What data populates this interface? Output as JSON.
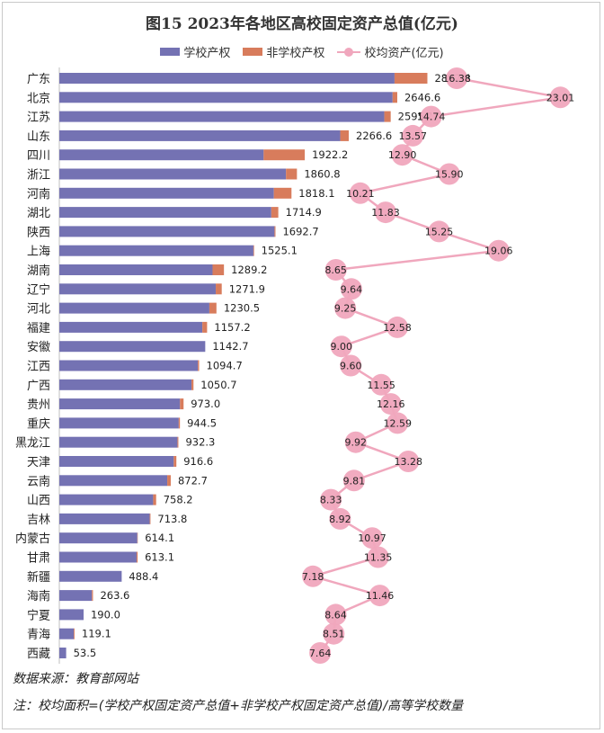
{
  "chart_data": {
    "type": "bar",
    "title": "图15  2023年各地区高校固定资产总值(亿元)",
    "legend": [
      "学校产权",
      "非学校产权",
      "校均资产(亿元)"
    ],
    "colors": {
      "school": "#7472b3",
      "nonschool": "#d87c5c",
      "avg": "#f0a7bd"
    },
    "xlim": [
      0,
      2900
    ],
    "categories": [
      "广东",
      "北京",
      "江苏",
      "山东",
      "四川",
      "浙江",
      "河南",
      "湖北",
      "陕西",
      "上海",
      "湖南",
      "辽宁",
      "河北",
      "福建",
      "安徽",
      "江西",
      "广西",
      "贵州",
      "重庆",
      "黑龙江",
      "天津",
      "云南",
      "山西",
      "吉林",
      "内蒙古",
      "甘肃",
      "新疆",
      "海南",
      "宁夏",
      "青海",
      "西藏"
    ],
    "series": [
      {
        "name": "学校产权",
        "values": [
          2625,
          2610,
          2545,
          2200,
          1600,
          1775,
          1680,
          1660,
          1685,
          1520,
          1200,
          1225,
          1175,
          1120,
          1142.7,
          1085,
          1035,
          945,
          935,
          925,
          896,
          845,
          735,
          708,
          611,
          605,
          488.4,
          255,
          190,
          113,
          53.5
        ]
      },
      {
        "name": "非学校产权",
        "values": [
          257.4,
          36.6,
          50.1,
          66.6,
          322.2,
          85.8,
          138.1,
          54.9,
          7.7,
          5.1,
          89.2,
          46.9,
          55.5,
          37.2,
          0,
          9.7,
          15.7,
          28,
          9.5,
          7.3,
          20.6,
          27.7,
          23.2,
          5.8,
          3.1,
          8.1,
          0,
          8.6,
          0,
          6.1,
          0
        ]
      },
      {
        "name": "校均资产(亿元)",
        "values": [
          16.38,
          23.01,
          14.74,
          13.57,
          12.9,
          15.9,
          10.21,
          11.83,
          15.25,
          19.06,
          8.65,
          9.64,
          9.25,
          12.58,
          9.0,
          9.6,
          11.55,
          12.16,
          12.59,
          9.92,
          13.28,
          9.81,
          8.33,
          8.92,
          10.97,
          11.35,
          7.18,
          11.46,
          8.64,
          8.51,
          7.64
        ]
      }
    ],
    "total_labels": [
      "2882.4",
      "2646.6",
      "2595.1",
      "2266.6",
      "1922.2",
      "1860.8",
      "1818.1",
      "1714.9",
      "1692.7",
      "1525.1",
      "1289.2",
      "1271.9",
      "1230.5",
      "1157.2",
      "1142.7",
      "1094.7",
      "1050.7",
      "973.0",
      "944.5",
      "932.3",
      "916.6",
      "872.7",
      "758.2",
      "713.8",
      "614.1",
      "613.1",
      "488.4",
      "263.6",
      "190.0",
      "119.1",
      "53.5"
    ],
    "avg_labels": [
      "16.38",
      "23.01",
      "14.74",
      "13.57",
      "12.90",
      "15.90",
      "10.21",
      "11.83",
      "15.25",
      "19.06",
      "8.65",
      "9.64",
      "9.25",
      "12.58",
      "9.00",
      "9.60",
      "11.55",
      "12.16",
      "12.59",
      "9.92",
      "13.28",
      "9.81",
      "8.33",
      "8.92",
      "10.97",
      "11.35",
      "7.18",
      "11.46",
      "8.64",
      "8.51",
      "7.64"
    ]
  },
  "footer": {
    "source": "数据来源：教育部网站",
    "note": "注：校均面积=(学校产权固定资产总值+非学校产权固定资产总值)/高等学校数量"
  }
}
